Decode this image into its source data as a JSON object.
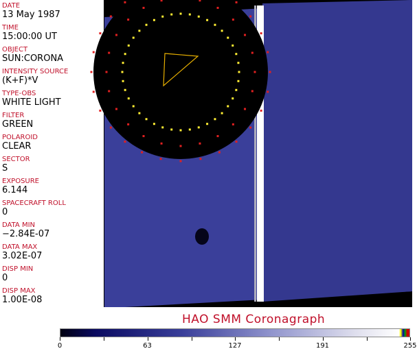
{
  "fields": [
    {
      "label": "DATE",
      "value": "13 May 1987"
    },
    {
      "label": "TIME",
      "value": "15:00:00 UT"
    },
    {
      "label": "OBJECT",
      "value": "SUN:CORONA"
    },
    {
      "label": "INTENSITY SOURCE",
      "value": "(K+F)*V"
    },
    {
      "label": "TYPE-OBS",
      "value": "WHITE LIGHT"
    },
    {
      "label": "FILTER",
      "value": "GREEN"
    },
    {
      "label": "POLAROID",
      "value": "CLEAR"
    },
    {
      "label": "SECTOR",
      "value": "S"
    },
    {
      "label": "EXPOSURE",
      "value": "6.144"
    },
    {
      "label": "SPACECRAFT ROLL",
      "value": "0"
    },
    {
      "label": "DATA MIN",
      "value": "−2.84E-07"
    },
    {
      "label": "DATA MAX",
      "value": "3.02E-07"
    },
    {
      "label": "DISP MIN",
      "value": "0"
    },
    {
      "label": "DISP MAX",
      "value": "1.00E-08"
    }
  ],
  "title": "HAO  SMM Coronagraph",
  "colorbar": {
    "ticks": [
      "0",
      "63",
      "127",
      "191",
      "255"
    ]
  },
  "colors": {
    "label": "#c0102a",
    "field": "#3a3f9a"
  }
}
